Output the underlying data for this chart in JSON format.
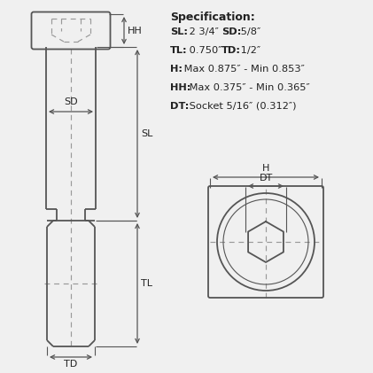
{
  "bg_color": "#f0f0f0",
  "line_color": "#555555",
  "dash_color": "#999999",
  "text_color": "#222222",
  "spec_title": "Specification:",
  "spec_lines": [
    [
      [
        "SL:",
        true
      ],
      [
        " 2 3/4″ ",
        false
      ],
      [
        "SD:",
        true
      ],
      [
        " 5/8″",
        false
      ]
    ],
    [
      [
        "TL:",
        true
      ],
      [
        " 0.750″ ",
        false
      ],
      [
        "TD:",
        true
      ],
      [
        " 1/2″",
        false
      ]
    ],
    [
      [
        "H:",
        true
      ],
      [
        " Max 0.875″ - Min 0.853″",
        false
      ]
    ],
    [
      [
        "HH:",
        true
      ],
      [
        " Max 0.375″ - Min 0.365″",
        false
      ]
    ],
    [
      [
        "DT:",
        true
      ],
      [
        " Socket 5/16″ (0.312″)",
        false
      ]
    ]
  ],
  "fig_width": 4.21,
  "fig_height": 4.21,
  "dpi": 100
}
